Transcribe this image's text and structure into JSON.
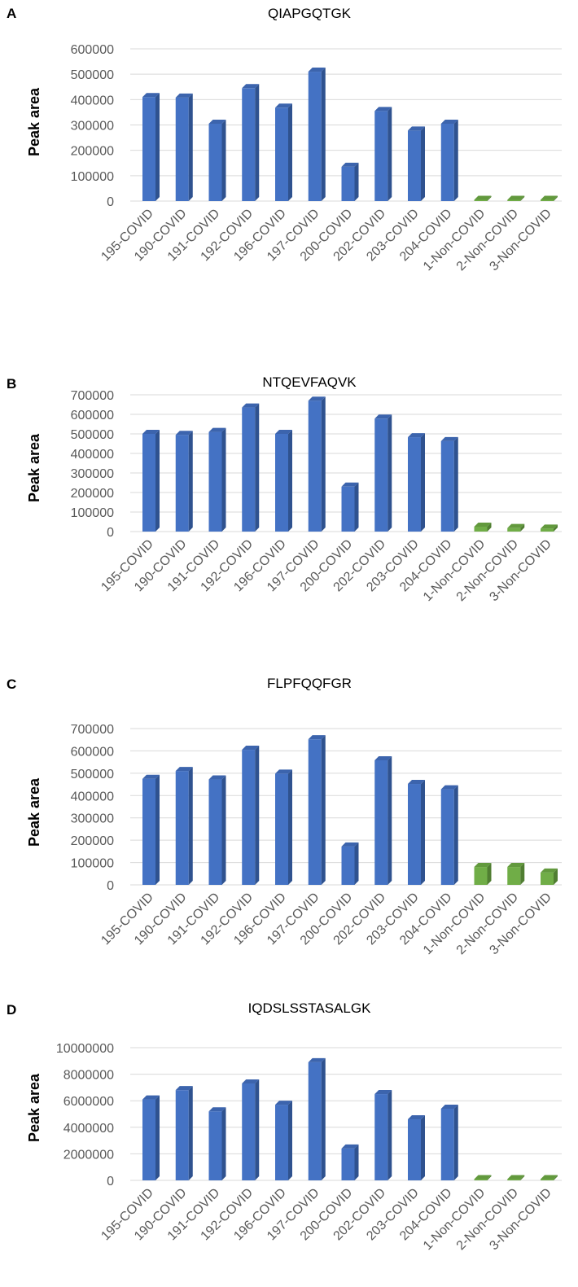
{
  "chart_data": [
    {
      "type": "bar",
      "panel_label": "A",
      "title": "QIAPGQTGK",
      "ylabel": "Peak area",
      "xlabel": "",
      "ylim": [
        0,
        600000
      ],
      "yticks": [
        "0",
        "100000",
        "200000",
        "300000",
        "400000",
        "500000",
        "600000"
      ],
      "categories": [
        "195-COVID",
        "190-COVID",
        "191-COVID",
        "192-COVID",
        "196-COVID",
        "197-COVID",
        "200-COVID",
        "202-COVID",
        "203-COVID",
        "204-COVID",
        "1-Non-COVID",
        "2-Non-COVID",
        "3-Non-COVID"
      ],
      "values": [
        410000,
        408000,
        305000,
        445000,
        368000,
        510000,
        135000,
        355000,
        278000,
        305000,
        2000,
        2000,
        1500
      ],
      "groups": [
        "covid",
        "covid",
        "covid",
        "covid",
        "covid",
        "covid",
        "covid",
        "covid",
        "covid",
        "covid",
        "non-covid",
        "non-covid",
        "non-covid"
      ],
      "grid": true
    },
    {
      "type": "bar",
      "panel_label": "B",
      "title": "NTQEVFAQVK",
      "ylabel": "Peak area",
      "xlabel": "",
      "ylim": [
        0,
        700000
      ],
      "yticks": [
        "0",
        "100000",
        "200000",
        "300000",
        "400000",
        "500000",
        "600000",
        "700000"
      ],
      "categories": [
        "195-COVID",
        "190-COVID",
        "191-COVID",
        "192-COVID",
        "196-COVID",
        "197-COVID",
        "200-COVID",
        "202-COVID",
        "203-COVID",
        "204-COVID",
        "1-Non-COVID",
        "2-Non-COVID",
        "3-Non-COVID"
      ],
      "values": [
        500000,
        495000,
        510000,
        635000,
        500000,
        670000,
        230000,
        578000,
        483000,
        463000,
        25000,
        18000,
        15000
      ],
      "groups": [
        "covid",
        "covid",
        "covid",
        "covid",
        "covid",
        "covid",
        "covid",
        "covid",
        "covid",
        "covid",
        "non-covid",
        "non-covid",
        "non-covid"
      ],
      "grid": true
    },
    {
      "type": "bar",
      "panel_label": "C",
      "title": "FLPFQQFGR",
      "ylabel": "Peak area",
      "xlabel": "",
      "ylim": [
        0,
        700000
      ],
      "yticks": [
        "0",
        "100000",
        "200000",
        "300000",
        "400000",
        "500000",
        "600000",
        "700000"
      ],
      "categories": [
        "195-COVID",
        "190-COVID",
        "191-COVID",
        "192-COVID",
        "196-COVID",
        "197-COVID",
        "200-COVID",
        "202-COVID",
        "203-COVID",
        "204-COVID",
        "1-Non-COVID",
        "2-Non-COVID",
        "3-Non-COVID"
      ],
      "values": [
        475000,
        510000,
        472000,
        605000,
        498000,
        652000,
        172000,
        558000,
        452000,
        428000,
        80000,
        80000,
        55000
      ],
      "groups": [
        "covid",
        "covid",
        "covid",
        "covid",
        "covid",
        "covid",
        "covid",
        "covid",
        "covid",
        "covid",
        "non-covid",
        "non-covid",
        "non-covid"
      ],
      "grid": true
    },
    {
      "type": "bar",
      "panel_label": "D",
      "title": "IQDSLSSTASALGK",
      "ylabel": "Peak area",
      "xlabel": "",
      "ylim": [
        0,
        10000000
      ],
      "yticks": [
        "0",
        "2000000",
        "4000000",
        "6000000",
        "8000000",
        "10000000"
      ],
      "categories": [
        "195-COVID",
        "190-COVID",
        "191-COVID",
        "192-COVID",
        "196-COVID",
        "197-COVID",
        "200-COVID",
        "202-COVID",
        "203-COVID",
        "204-COVID",
        "1-Non-COVID",
        "2-Non-COVID",
        "3-Non-COVID"
      ],
      "values": [
        6100000,
        6800000,
        5200000,
        7300000,
        5700000,
        8900000,
        2400000,
        6500000,
        4600000,
        5400000,
        40000,
        40000,
        40000
      ],
      "groups": [
        "covid",
        "covid",
        "covid",
        "covid",
        "covid",
        "covid",
        "covid",
        "covid",
        "covid",
        "covid",
        "non-covid",
        "non-covid",
        "non-covid"
      ],
      "grid": true
    }
  ],
  "colors": {
    "covid_front": "#4472c4",
    "covid_side": "#2f528f",
    "covid_top": "#3c64ad",
    "noncovid_front": "#70ad47",
    "noncovid_side": "#507e32",
    "noncovid_top": "#62993d"
  }
}
